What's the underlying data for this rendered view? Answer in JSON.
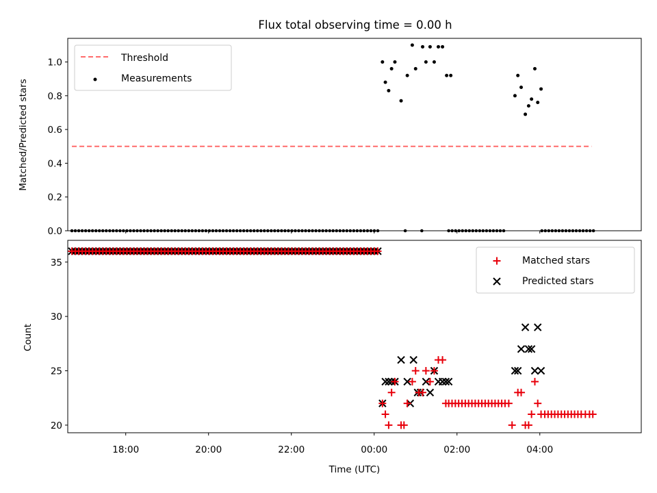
{
  "colors": {
    "red": "#e8000b",
    "black": "#000000",
    "threshold": "#ff6b6b"
  },
  "chart_data": [
    {
      "type": "scatter",
      "title": "Flux total observing time = 0.00 h",
      "xlabel": "",
      "ylabel": "Matched/Predicted stars",
      "xlim": [
        -7.4,
        6.45
      ],
      "ylim": [
        0,
        1.14
      ],
      "yticks": [
        0.0,
        0.2,
        0.4,
        0.6,
        0.8,
        1.0
      ],
      "yticklabels": [
        "0.0",
        "0.2",
        "0.4",
        "0.6",
        "0.8",
        "1.0"
      ],
      "legend_position": "top-left",
      "legend": [
        "Threshold",
        "Measurements"
      ],
      "threshold": {
        "name": "Threshold",
        "value": 0.5,
        "x": [
          -7.3,
          5.25
        ]
      },
      "zero_ranges": [
        [
          -7.3,
          0.13
        ],
        [
          1.8,
          3.2
        ],
        [
          4.05,
          5.3
        ]
      ],
      "zero_step": 0.083,
      "zero_points_x": [
        0.75,
        1.15
      ],
      "series": [
        {
          "name": "Measurements",
          "x": [
            0.2,
            0.27,
            0.35,
            0.42,
            0.5,
            0.65,
            0.8,
            0.92,
            1.0,
            1.17,
            1.25,
            1.35,
            1.45,
            1.55,
            1.65,
            1.75,
            1.85,
            3.4,
            3.47,
            3.55,
            3.65,
            3.73,
            3.8,
            3.88,
            3.95,
            4.03
          ],
          "y": [
            1.0,
            0.88,
            0.83,
            0.96,
            1.0,
            0.77,
            0.92,
            1.1,
            0.96,
            1.09,
            1.0,
            1.09,
            1.0,
            1.09,
            1.09,
            0.92,
            0.92,
            0.8,
            0.92,
            0.85,
            0.69,
            0.74,
            0.78,
            0.96,
            0.76,
            0.84
          ]
        }
      ]
    },
    {
      "type": "scatter",
      "title": "",
      "xlabel": "Time (UTC)",
      "ylabel": "Count",
      "xlim": [
        -7.4,
        6.45
      ],
      "ylim": [
        19.3,
        37.0
      ],
      "yticks": [
        20,
        25,
        30,
        35
      ],
      "yticklabels": [
        "20",
        "25",
        "30",
        "35"
      ],
      "xticks": [
        -6,
        -4,
        -2,
        0,
        2,
        4
      ],
      "xticklabels": [
        "18:00",
        "20:00",
        "22:00",
        "00:00",
        "02:00",
        "04:00"
      ],
      "legend_position": "top-right",
      "legend": [
        "Matched stars",
        "Predicted stars"
      ],
      "constant_segment": {
        "x_range": [
          -7.3,
          0.13
        ],
        "value": 36,
        "step": 0.083
      },
      "series": [
        {
          "name": "Matched stars",
          "x": [
            0.2,
            0.27,
            0.35,
            0.42,
            0.5,
            0.65,
            0.72,
            0.8,
            0.92,
            1.0,
            1.08,
            1.17,
            1.25,
            1.35,
            1.45,
            1.55,
            1.65,
            1.73,
            1.8,
            1.88,
            1.96,
            2.04,
            2.12,
            2.2,
            2.28,
            2.36,
            2.44,
            2.52,
            2.6,
            2.68,
            2.76,
            2.84,
            2.92,
            3.0,
            3.08,
            3.16,
            3.25,
            3.33,
            3.47,
            3.55,
            3.65,
            3.73,
            3.8,
            3.88,
            3.95,
            4.03,
            4.12,
            4.2,
            4.28,
            4.36,
            4.44,
            4.52,
            4.6,
            4.68,
            4.76,
            4.84,
            4.92,
            5.0,
            5.1,
            5.2,
            5.28
          ],
          "y": [
            22,
            21,
            20,
            23,
            24,
            20,
            20,
            22,
            24,
            25,
            23,
            23,
            25,
            24,
            25,
            26,
            26,
            22,
            22,
            22,
            22,
            22,
            22,
            22,
            22,
            22,
            22,
            22,
            22,
            22,
            22,
            22,
            22,
            22,
            22,
            22,
            22,
            20,
            23,
            23,
            20,
            20,
            21,
            24,
            22,
            21,
            21,
            21,
            21,
            21,
            21,
            21,
            21,
            21,
            21,
            21,
            21,
            21,
            21,
            21,
            21
          ]
        },
        {
          "name": "Predicted stars",
          "x": [
            0.2,
            0.27,
            0.35,
            0.42,
            0.5,
            0.65,
            0.8,
            0.87,
            0.95,
            1.05,
            1.12,
            1.25,
            1.35,
            1.45,
            1.55,
            1.65,
            1.73,
            1.8,
            3.4,
            3.47,
            3.55,
            3.65,
            3.73,
            3.8,
            3.88,
            3.95,
            4.03
          ],
          "y": [
            22,
            24,
            24,
            24,
            24,
            26,
            24,
            22,
            26,
            23,
            23,
            24,
            23,
            25,
            24,
            24,
            24,
            24,
            25,
            25,
            27,
            29,
            27,
            27,
            25,
            29,
            25
          ]
        }
      ]
    }
  ]
}
